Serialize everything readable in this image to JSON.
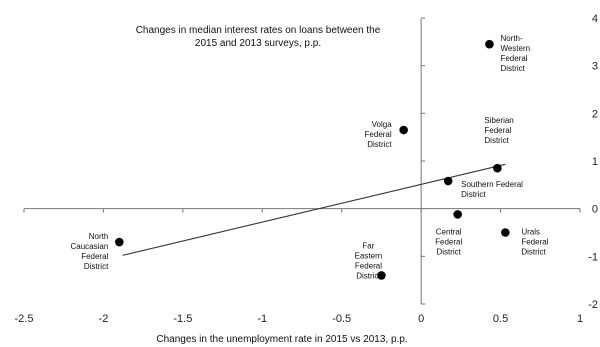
{
  "chart_data": {
    "type": "scatter",
    "title": [
      "Changes in median interest rates on loans between the",
      "2015 and 2013 surveys, p.p."
    ],
    "xlabel": "Changes in the unemployment rate in 2015 vs 2013, p.p.",
    "ylabel": "",
    "xlim": [
      -2.5,
      1
    ],
    "ylim": [
      -2,
      4
    ],
    "x_ticks": [
      "-2.5",
      "-2",
      "-1.5",
      "-1",
      "-0.5",
      "0",
      "0.5",
      "1"
    ],
    "y_ticks": [
      "4",
      "3",
      "2",
      "1",
      "0",
      "-1",
      "-2"
    ],
    "grid": false,
    "points": [
      {
        "x": 0.43,
        "y": 3.45,
        "label": [
          "North-",
          "Western",
          "Federal",
          "District"
        ]
      },
      {
        "x": -0.11,
        "y": 1.65,
        "label": [
          "Volga",
          "Federal",
          "District"
        ]
      },
      {
        "x": 0.48,
        "y": 0.85,
        "label": [
          "Siberian",
          "Federal",
          "District"
        ]
      },
      {
        "x": 0.17,
        "y": 0.58,
        "label": [
          "Southern Federal",
          "District"
        ]
      },
      {
        "x": 0.23,
        "y": -0.12,
        "label": [
          "Central",
          "Federal",
          "District"
        ]
      },
      {
        "x": 0.53,
        "y": -0.5,
        "label": [
          "Urals",
          "Federal",
          "District"
        ]
      },
      {
        "x": -1.9,
        "y": -0.7,
        "label": [
          "North",
          "Caucasian",
          "Federal",
          "District"
        ]
      },
      {
        "x": -0.25,
        "y": -1.4,
        "label": [
          "Far",
          "Eastern",
          "Federal",
          "District"
        ]
      }
    ],
    "trendline": {
      "x": [
        -1.88,
        0.53
      ],
      "y": [
        -0.98,
        0.93
      ]
    }
  }
}
